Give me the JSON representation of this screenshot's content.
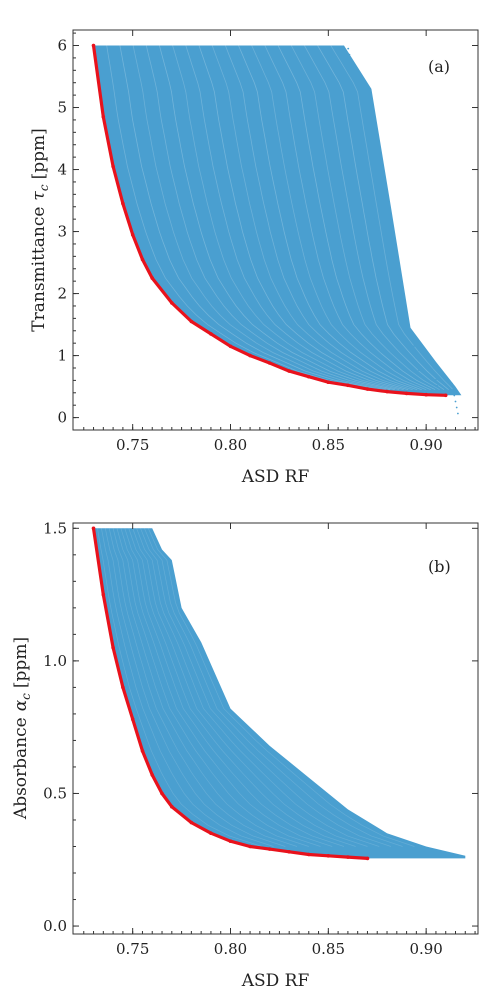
{
  "chart_data": [
    {
      "type": "scatter",
      "panel_label": "(a)",
      "xlabel": "ASD RF",
      "ylabel_main": "Transmittance",
      "ylabel_symbol": "τ",
      "ylabel_sub": "c",
      "ylabel_unit": "[ppm]",
      "xlim": [
        0.7195,
        0.9265
      ],
      "ylim": [
        -0.2,
        6.25
      ],
      "xticks": [
        0.75,
        0.8,
        0.85,
        0.9
      ],
      "xtick_labels": [
        "0.75",
        "0.80",
        "0.85",
        "0.90"
      ],
      "yticks": [
        0,
        1,
        2,
        3,
        4,
        5,
        6
      ],
      "ytick_labels": [
        "0",
        "1",
        "2",
        "3",
        "4",
        "5",
        "6"
      ],
      "legend": "none",
      "grid": false,
      "colors": {
        "cloud": "#4a9fd0",
        "frontier": "#e8121c"
      },
      "series": [
        {
          "role": "sampled-designs",
          "upper_limit": 6.0,
          "outer_envelope": [
            [
              0.731,
              6.0
            ],
            [
              0.78,
              6.0
            ],
            [
              0.82,
              6.0
            ],
            [
              0.845,
              6.0
            ],
            [
              0.858,
              6.0
            ],
            [
              0.872,
              5.3
            ],
            [
              0.882,
              3.4
            ],
            [
              0.892,
              1.45
            ],
            [
              0.905,
              0.9
            ],
            [
              0.915,
              0.5
            ],
            [
              0.918,
              0.36
            ]
          ],
          "sparse_extent": [
            [
              0.862,
              5.95
            ],
            [
              0.874,
              3.5
            ],
            [
              0.885,
              2.6
            ],
            [
              0.895,
              1.25
            ],
            [
              0.905,
              0.9
            ],
            [
              0.915,
              0.55
            ]
          ]
        },
        {
          "role": "minimum-boundary",
          "x": [
            0.73,
            0.735,
            0.74,
            0.745,
            0.75,
            0.755,
            0.76,
            0.77,
            0.78,
            0.79,
            0.8,
            0.81,
            0.82,
            0.83,
            0.84,
            0.85,
            0.86,
            0.87,
            0.88,
            0.89,
            0.9,
            0.91
          ],
          "y": [
            6.0,
            4.85,
            4.05,
            3.45,
            2.95,
            2.55,
            2.25,
            1.85,
            1.55,
            1.35,
            1.15,
            1.0,
            0.88,
            0.75,
            0.66,
            0.57,
            0.52,
            0.46,
            0.42,
            0.39,
            0.37,
            0.36
          ]
        }
      ]
    },
    {
      "type": "scatter",
      "panel_label": "(b)",
      "xlabel": "ASD RF",
      "ylabel_main": "Absorbance",
      "ylabel_symbol": "α",
      "ylabel_sub": "c",
      "ylabel_unit": "[ppm]",
      "xlim": [
        0.7195,
        0.9265
      ],
      "ylim": [
        -0.03,
        1.52
      ],
      "xticks": [
        0.75,
        0.8,
        0.85,
        0.9
      ],
      "xtick_labels": [
        "0.75",
        "0.80",
        "0.85",
        "0.90"
      ],
      "yticks": [
        0.0,
        0.5,
        1.0,
        1.5
      ],
      "ytick_labels": [
        "0.0",
        "0.5",
        "1.0",
        "1.5"
      ],
      "legend": "none",
      "grid": false,
      "colors": {
        "cloud": "#4a9fd0",
        "frontier": "#e8121c"
      },
      "series": [
        {
          "role": "sampled-designs",
          "upper_limit": 1.5,
          "outer_envelope": [
            [
              0.731,
              1.5
            ],
            [
              0.76,
              1.5
            ],
            [
              0.765,
              1.42
            ],
            [
              0.77,
              1.38
            ],
            [
              0.775,
              1.2
            ],
            [
              0.785,
              1.07
            ],
            [
              0.8,
              0.82
            ],
            [
              0.82,
              0.68
            ],
            [
              0.84,
              0.56
            ],
            [
              0.86,
              0.44
            ],
            [
              0.88,
              0.35
            ],
            [
              0.9,
              0.3
            ],
            [
              0.92,
              0.265
            ]
          ],
          "sparse_extent": []
        },
        {
          "role": "minimum-boundary",
          "x": [
            0.73,
            0.735,
            0.74,
            0.745,
            0.75,
            0.755,
            0.76,
            0.765,
            0.77,
            0.78,
            0.79,
            0.8,
            0.81,
            0.82,
            0.83,
            0.84,
            0.85,
            0.86,
            0.87
          ],
          "y": [
            1.5,
            1.25,
            1.05,
            0.9,
            0.78,
            0.66,
            0.57,
            0.5,
            0.45,
            0.39,
            0.35,
            0.32,
            0.3,
            0.29,
            0.28,
            0.27,
            0.265,
            0.26,
            0.255
          ]
        }
      ]
    }
  ]
}
